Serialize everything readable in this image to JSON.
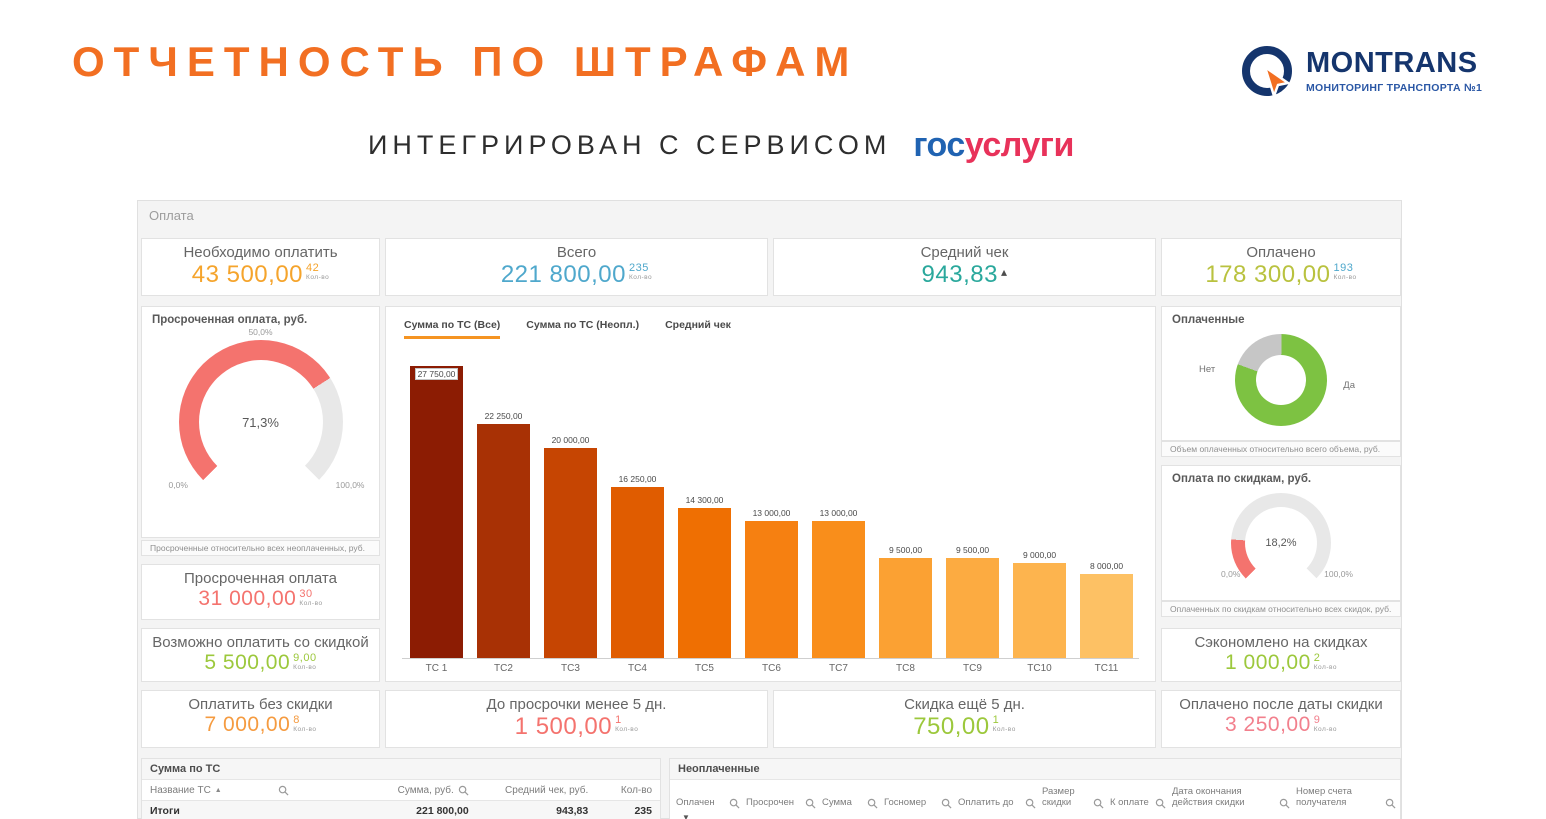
{
  "header": {
    "title": "ОТЧЕТНОСТЬ ПО ШТРАФАМ",
    "subtitle": "ИНТЕГРИРОВАН С СЕРВИСОМ",
    "montrans": {
      "name": "MONTRANS",
      "tagline": "МОНИТОРИНГ ТРАНСПОРТА №1"
    },
    "gosuslugi": {
      "blue": "гос",
      "red": "услуги"
    }
  },
  "panel": {
    "title": "Оплата"
  },
  "kpis": {
    "need_to_pay": {
      "label": "Необходимо оплатить",
      "value": "43 500,00",
      "count": "42",
      "count_label": "Кол-во"
    },
    "total": {
      "label": "Всего",
      "value": "221 800,00",
      "count": "235",
      "count_label": "Кол-во"
    },
    "avg_check": {
      "label": "Средний чек",
      "value": "943,83",
      "trend": "▴"
    },
    "paid": {
      "label": "Оплачено",
      "value": "178 300,00",
      "count": "193",
      "count_label": "Кол-во"
    },
    "overdue": {
      "label": "Просроченная оплата",
      "value": "31 000,00",
      "count": "30",
      "count_label": "Кол-во"
    },
    "pay_with_discount": {
      "label": "Возможно оплатить со скидкой",
      "value": "5 500,00",
      "count": "9,00",
      "count_label": "Кол-во"
    },
    "pay_no_discount": {
      "label": "Оплатить без скидки",
      "value": "7 000,00",
      "count": "8",
      "count_label": "Кол-во"
    },
    "before_overdue": {
      "label": "До просрочки менее 5 дн.",
      "value": "1 500,00",
      "count": "1",
      "count_label": "Кол-во"
    },
    "discount_5_days": {
      "label": "Скидка ещё 5 дн.",
      "value": "750,00",
      "count": "1",
      "count_label": "Кол-во"
    },
    "saved_on_discounts": {
      "label": "Сэкономлено на скидках",
      "value": "1 000,00",
      "count": "2",
      "count_label": "Кол-во"
    },
    "paid_after_discount": {
      "label": "Оплачено после даты скидки",
      "value": "3 250,00",
      "count": "9",
      "count_label": "Кол-во"
    }
  },
  "gauge_overdue": {
    "title": "Просроченная оплата, руб.",
    "value": "71,3%",
    "percent": 71.3,
    "tick_start": "0,0%",
    "tick_mid": "50,0%",
    "tick_end": "100,0%",
    "caption": "Просроченные относительно всех неоплаченных, руб."
  },
  "donut": {
    "title": "Оплаченные",
    "label_no": "Нет",
    "label_yes": "Да",
    "no_percent": 19.6,
    "yes_percent": 80.4,
    "caption": "Объем оплаченных относительно всего объема, руб."
  },
  "gauge_discount": {
    "title": "Оплата по скидкам, руб.",
    "value": "18,2%",
    "percent": 18.2,
    "tick_start": "0,0%",
    "tick_end": "100,0%",
    "caption": "Оплаченных по скидкам относительно всех скидок, руб."
  },
  "chart_data": {
    "type": "bar",
    "title": "",
    "xlabel": "",
    "ylabel": "",
    "ylim": [
      0,
      27750
    ],
    "grid": false,
    "tabs": [
      {
        "label": "Сумма по ТС (Все)",
        "active": true
      },
      {
        "label": "Сумма по ТС (Неопл.)",
        "active": false
      },
      {
        "label": "Средний чек",
        "active": false
      }
    ],
    "categories": [
      "ТС 1",
      "ТС2",
      "ТС3",
      "ТС4",
      "ТС5",
      "ТС6",
      "ТС7",
      "ТС8",
      "ТС9",
      "ТС10",
      "ТС11"
    ],
    "values": [
      27750,
      22250,
      20000,
      16250,
      14300,
      13000,
      13000,
      9500,
      9500,
      9000,
      8000
    ],
    "labels": [
      "27 750,00",
      "22 250,00",
      "20 000,00",
      "16 250,00",
      "14 300,00",
      "13 000,00",
      "13 000,00",
      "9 500,00",
      "9 500,00",
      "9 000,00",
      "8 000,00"
    ],
    "colors": [
      "#8c1c03",
      "#a83105",
      "#c64502",
      "#e05c00",
      "#ef6f02",
      "#f68011",
      "#f98e1b",
      "#fba133",
      "#fcab41",
      "#fdb44e",
      "#fdc164"
    ]
  },
  "tables": {
    "sum": {
      "title": "Сумма по ТС",
      "columns": [
        "Название ТС",
        "Сумма, руб.",
        "Средний чек, руб.",
        "Кол-во"
      ],
      "totals": {
        "label": "Итоги",
        "values": [
          "221 800,00",
          "943,83",
          "235"
        ]
      }
    },
    "unpaid": {
      "title": "Неоплаченные",
      "columns": [
        "Оплачен",
        "Просрочен",
        "Сумма",
        "Госномер",
        "Оплатить до",
        "Размер скидки",
        "К оплате",
        "Дата окончания действия скидки",
        "Номер счета получателя"
      ]
    }
  },
  "colors": {
    "accent_orange": "#f26f22",
    "brand_navy": "#15356d",
    "gosuslugi_blue": "#2063b2",
    "gosuslugi_red": "#e8325a",
    "value_orange": "#f5a42c",
    "value_blue": "#4fa8cc",
    "value_teal": "#2aa89c",
    "value_yellow_green": "#b9c23f",
    "value_red": "#f4736e",
    "value_green": "#9cc83c",
    "value_amber": "#f59b40",
    "value_pink": "#f2808d",
    "gauge_fill": "#f4736e",
    "gauge_rest": "#e8e8e8",
    "donut_yes": "#7dc242",
    "donut_no": "#c6c6c6",
    "tab_underline": "#f59422"
  }
}
